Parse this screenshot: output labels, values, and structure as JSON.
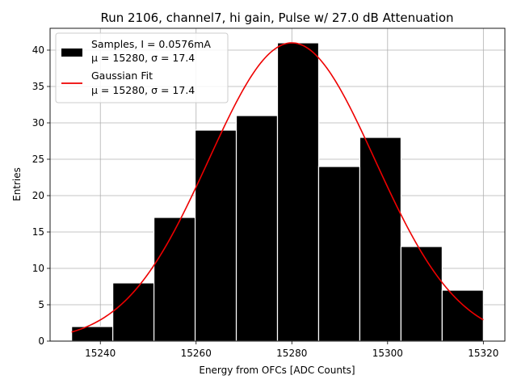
{
  "chart_data": {
    "type": "bar",
    "title": "Run 2106, channel7, hi gain, Pulse w/ 27.0 dB Attenuation",
    "xlabel": "Energy from OFCs [ADC Counts]",
    "ylabel": "Entries",
    "xlim": [
      15229.5,
      15324.5
    ],
    "ylim": [
      0,
      43
    ],
    "xticks": [
      15240,
      15260,
      15280,
      15300,
      15320
    ],
    "yticks": [
      0,
      5,
      10,
      15,
      20,
      25,
      30,
      35,
      40
    ],
    "grid": true,
    "legend_position": "top-left",
    "histogram": {
      "name": "Samples, I = 0.0576mA",
      "stats": "μ = 15280, σ = 17.4",
      "color": "#000000",
      "edge_color": "#ffffff",
      "bin_edges": [
        15234,
        15242.6,
        15251.2,
        15259.8,
        15268.4,
        15277,
        15285.6,
        15294.2,
        15302.8,
        15311.4,
        15320
      ],
      "counts": [
        2,
        8,
        17,
        29,
        31,
        41,
        24,
        28,
        13,
        7
      ]
    },
    "fit": {
      "name": "Gaussian Fit",
      "stats": "μ = 15280, σ = 17.4",
      "color": "#ee0000",
      "mu": 15280,
      "sigma": 17.4,
      "amplitude": 41,
      "x_range": [
        15234,
        15320
      ]
    }
  }
}
